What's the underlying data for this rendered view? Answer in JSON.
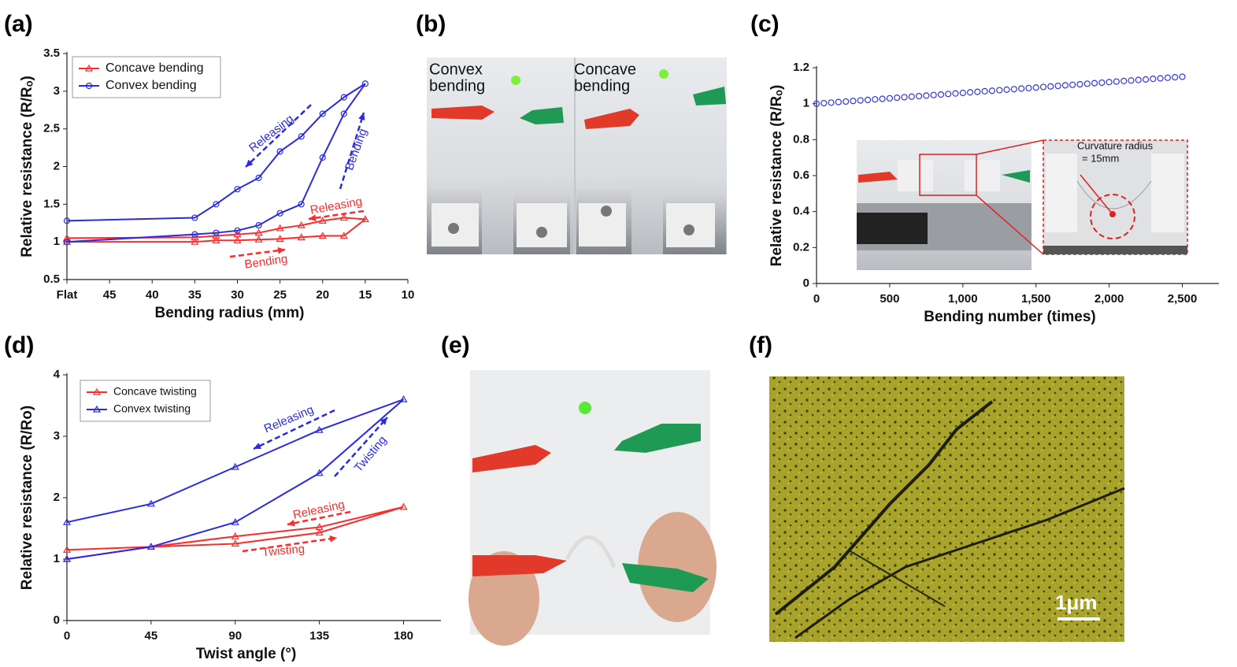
{
  "panel_labels": [
    "(a)",
    "(b)",
    "(c)",
    "(d)",
    "(e)",
    "(f)"
  ],
  "chart_data": [
    {
      "type": "line",
      "xlabel": "Bending radius (mm)",
      "ylabel": "Relative resistance (R/Rₒ)",
      "xlim": [
        50,
        10
      ],
      "ylim": [
        0.5,
        3.5
      ],
      "xticks": [
        {
          "value": 50,
          "label": "Flat"
        },
        45,
        40,
        35,
        30,
        25,
        20,
        15,
        10
      ],
      "yticks": [
        0.5,
        1,
        1.5,
        2,
        2.5,
        3,
        3.5
      ],
      "legend": "upper left",
      "series": [
        {
          "name": "Concave bending",
          "color": "#ff2a2a",
          "marker": "triangle",
          "x": [
            50,
            35,
            32.5,
            30,
            27.5,
            25,
            22.5,
            20,
            17.5,
            15,
            17.5,
            20,
            22.5,
            25,
            27.5,
            30,
            32.5,
            35,
            50
          ],
          "values": [
            1.0,
            1.0,
            1.02,
            1.02,
            1.03,
            1.04,
            1.06,
            1.08,
            1.08,
            1.3,
            1.32,
            1.28,
            1.22,
            1.18,
            1.12,
            1.1,
            1.08,
            1.06,
            1.05
          ]
        },
        {
          "name": "Convex bending",
          "color": "#2a2ae6",
          "marker": "circle",
          "x": [
            50,
            35,
            32.5,
            30,
            27.5,
            25,
            22.5,
            20,
            17.5,
            15,
            17.5,
            20,
            22.5,
            25,
            27.5,
            30,
            32.5,
            35,
            50
          ],
          "values": [
            1.0,
            1.1,
            1.12,
            1.15,
            1.22,
            1.38,
            1.5,
            2.12,
            2.7,
            3.1,
            2.92,
            2.7,
            2.4,
            2.2,
            1.85,
            1.7,
            1.5,
            1.32,
            1.28
          ]
        }
      ],
      "annotations": [
        {
          "text": "Releasing",
          "color": "#2a2ae6"
        },
        {
          "text": "Bending",
          "color": "#2a2ae6"
        },
        {
          "text": "Releasing",
          "color": "#ff2a2a"
        },
        {
          "text": "Bending",
          "color": "#ff2a2a"
        }
      ]
    },
    {
      "type": "scatter",
      "xlabel": "Bending number (times)",
      "ylabel": "Relative resistance (R/Rₒ)",
      "xlim": [
        0,
        2750
      ],
      "ylim": [
        0,
        1.2
      ],
      "xticks": [
        0,
        500,
        {
          "value": 1000,
          "label": "1,000"
        },
        {
          "value": 1500,
          "label": "1,500"
        },
        {
          "value": 2000,
          "label": "2,000"
        },
        {
          "value": 2500,
          "label": "2,500"
        }
      ],
      "yticks": [
        0,
        0.2,
        0.4,
        0.6,
        0.8,
        1,
        1.2
      ],
      "series": [
        {
          "color": "#3333ee",
          "marker": "circle",
          "x": [
            0,
            50,
            100,
            150,
            200,
            250,
            300,
            350,
            400,
            450,
            500,
            550,
            600,
            650,
            700,
            750,
            800,
            850,
            900,
            950,
            1000,
            1050,
            1100,
            1150,
            1200,
            1250,
            1300,
            1350,
            1400,
            1450,
            1500,
            1550,
            1600,
            1650,
            1700,
            1750,
            1800,
            1850,
            1900,
            1950,
            2000,
            2050,
            2100,
            2150,
            2200,
            2250,
            2300,
            2350,
            2400,
            2450,
            2500
          ],
          "values": [
            1.0,
            1.003,
            1.006,
            1.009,
            1.012,
            1.015,
            1.018,
            1.021,
            1.024,
            1.027,
            1.03,
            1.033,
            1.036,
            1.039,
            1.042,
            1.045,
            1.048,
            1.051,
            1.054,
            1.057,
            1.06,
            1.063,
            1.066,
            1.069,
            1.072,
            1.075,
            1.078,
            1.081,
            1.084,
            1.087,
            1.09,
            1.093,
            1.096,
            1.099,
            1.102,
            1.105,
            1.108,
            1.111,
            1.114,
            1.117,
            1.12,
            1.123,
            1.126,
            1.129,
            1.132,
            1.135,
            1.138,
            1.141,
            1.144,
            1.147,
            1.15
          ]
        }
      ]
    },
    {
      "type": "line",
      "xlabel": "Twist angle (°)",
      "ylabel": "Relative resistance (R/Ro)",
      "xlim": [
        0,
        200
      ],
      "ylim": [
        0,
        4
      ],
      "xticks": [
        0,
        45,
        90,
        135,
        180
      ],
      "yticks": [
        0,
        1,
        2,
        3,
        4
      ],
      "legend": "upper left",
      "series": [
        {
          "name": "Concave twisting",
          "color": "#ff2a2a",
          "marker": "triangle",
          "x": [
            0,
            45,
            90,
            135,
            180,
            135,
            90,
            45,
            0
          ],
          "values": [
            1.0,
            1.2,
            1.25,
            1.43,
            1.85,
            1.52,
            1.37,
            1.2,
            1.15
          ]
        },
        {
          "name": "Convex twisting",
          "color": "#2a2ae6",
          "marker": "triangle",
          "x": [
            0,
            45,
            90,
            135,
            180,
            135,
            90,
            45,
            0
          ],
          "values": [
            1.0,
            1.2,
            1.6,
            2.4,
            3.6,
            3.1,
            2.5,
            1.9,
            1.6
          ]
        }
      ],
      "annotations": [
        {
          "text": "Releasing",
          "color": "#2a2ae6"
        },
        {
          "text": "Twisting",
          "color": "#2a2ae6"
        },
        {
          "text": "Releasing",
          "color": "#ff2a2a"
        },
        {
          "text": "Twisting",
          "color": "#ff2a2a"
        }
      ]
    }
  ],
  "photos": {
    "b": {
      "left_label": [
        "Convex",
        "bending"
      ],
      "right_label": [
        "Concave",
        "bending"
      ]
    },
    "c_inset": {
      "label": [
        "Curvature radius",
        "= 15mm"
      ]
    },
    "f": {
      "scale_bar": "1μm"
    }
  }
}
